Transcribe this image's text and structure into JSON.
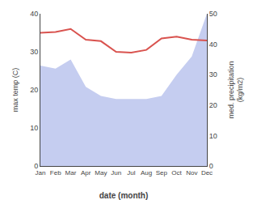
{
  "chart_data": {
    "type": "line",
    "xlabel": "date (month)",
    "ylabel": "max temp (C)",
    "y2label": "med. precipitation\n(kg/m2)",
    "categories": [
      "Jan",
      "Feb",
      "Mar",
      "Apr",
      "May",
      "Jun",
      "Jul",
      "Aug",
      "Sep",
      "Oct",
      "Nov",
      "Dec"
    ],
    "series": [
      {
        "type": "area",
        "color": "#c5cdf0",
        "axis": "y2",
        "values": [
          33,
          32,
          35,
          26,
          23,
          22,
          22,
          22,
          23,
          30,
          36,
          50
        ]
      },
      {
        "type": "line",
        "color": "#d9534f",
        "values": [
          35.0,
          35.2,
          36.0,
          33.2,
          32.8,
          30.0,
          29.8,
          30.5,
          33.5,
          34.0,
          33.2,
          33.0
        ]
      }
    ],
    "ylim": [
      0,
      40
    ],
    "yticks": [
      0,
      10,
      20,
      30,
      40
    ],
    "y2lim": [
      0,
      50
    ],
    "y2ticks": [
      0,
      10,
      20,
      30,
      40,
      50
    ],
    "grid": false
  }
}
